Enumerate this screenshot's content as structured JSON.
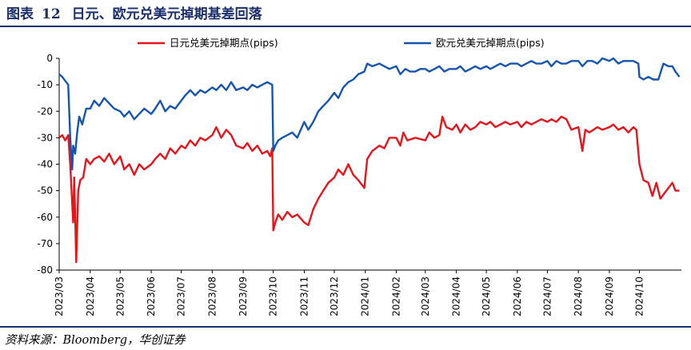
{
  "header": {
    "figure_label": "图表",
    "figure_number": "12",
    "title": "日元、欧元兑美元掉期基差回落"
  },
  "footer": {
    "source": "资料来源：Bloomberg，华创证券"
  },
  "colors": {
    "jpy": "#e8141c",
    "eur": "#1555b0",
    "accent": "#1a2f6b"
  },
  "chart_data": {
    "type": "line",
    "ylim": [
      -80,
      0
    ],
    "yticks": [
      0,
      -10,
      -20,
      -30,
      -40,
      -50,
      -60,
      -70,
      -80
    ],
    "xlim": [
      "2023-03-01",
      "2024-11-12"
    ],
    "xticks": [
      "2023/03",
      "2023/04",
      "2023/05",
      "2023/06",
      "2023/07",
      "2023/08",
      "2023/09",
      "2023/10",
      "2023/11",
      "2023/12",
      "2024/01",
      "2024/02",
      "2024/03",
      "2024/04",
      "2024/05",
      "2024/06",
      "2024/07",
      "2024/08",
      "2024/09",
      "2024/10"
    ],
    "legend_position": "top",
    "grid": false,
    "series": [
      {
        "name": "日元兑美元掉期点(pips)",
        "color": "#e8141c",
        "points": [
          [
            "2023-03-01",
            -30
          ],
          [
            "2023-03-04",
            -29
          ],
          [
            "2023-03-07",
            -31
          ],
          [
            "2023-03-10",
            -29
          ],
          [
            "2023-03-12",
            -40
          ],
          [
            "2023-03-14",
            -55
          ],
          [
            "2023-03-15",
            -62
          ],
          [
            "2023-03-16",
            -45
          ],
          [
            "2023-03-17",
            -60
          ],
          [
            "2023-03-18",
            -77
          ],
          [
            "2023-03-20",
            -50
          ],
          [
            "2023-03-22",
            -46
          ],
          [
            "2023-03-25",
            -45
          ],
          [
            "2023-03-28",
            -38
          ],
          [
            "2023-04-01",
            -40
          ],
          [
            "2023-04-05",
            -38
          ],
          [
            "2023-04-10",
            -37
          ],
          [
            "2023-04-15",
            -39
          ],
          [
            "2023-04-20",
            -36
          ],
          [
            "2023-04-25",
            -40
          ],
          [
            "2023-05-01",
            -37
          ],
          [
            "2023-05-05",
            -42
          ],
          [
            "2023-05-10",
            -40
          ],
          [
            "2023-05-15",
            -44
          ],
          [
            "2023-05-20",
            -40
          ],
          [
            "2023-05-25",
            -42
          ],
          [
            "2023-06-01",
            -40
          ],
          [
            "2023-06-05",
            -38
          ],
          [
            "2023-06-10",
            -36
          ],
          [
            "2023-06-15",
            -38
          ],
          [
            "2023-06-20",
            -34
          ],
          [
            "2023-06-25",
            -36
          ],
          [
            "2023-07-01",
            -33
          ],
          [
            "2023-07-05",
            -34
          ],
          [
            "2023-07-10",
            -31
          ],
          [
            "2023-07-15",
            -33
          ],
          [
            "2023-07-20",
            -30
          ],
          [
            "2023-07-25",
            -31
          ],
          [
            "2023-08-01",
            -29
          ],
          [
            "2023-08-05",
            -26
          ],
          [
            "2023-08-10",
            -30
          ],
          [
            "2023-08-15",
            -27
          ],
          [
            "2023-08-20",
            -29
          ],
          [
            "2023-08-25",
            -33
          ],
          [
            "2023-09-01",
            -34
          ],
          [
            "2023-09-05",
            -32
          ],
          [
            "2023-09-10",
            -35
          ],
          [
            "2023-09-15",
            -33
          ],
          [
            "2023-09-20",
            -36
          ],
          [
            "2023-09-25",
            -35
          ],
          [
            "2023-09-28",
            -37
          ],
          [
            "2023-09-30",
            -34
          ],
          [
            "2023-10-01",
            -65
          ],
          [
            "2023-10-03",
            -62
          ],
          [
            "2023-10-06",
            -59
          ],
          [
            "2023-10-10",
            -61
          ],
          [
            "2023-10-15",
            -58
          ],
          [
            "2023-10-20",
            -60
          ],
          [
            "2023-10-25",
            -59
          ],
          [
            "2023-11-01",
            -62
          ],
          [
            "2023-11-05",
            -63
          ],
          [
            "2023-11-10",
            -57
          ],
          [
            "2023-11-15",
            -53
          ],
          [
            "2023-11-20",
            -50
          ],
          [
            "2023-11-25",
            -47
          ],
          [
            "2023-12-01",
            -45
          ],
          [
            "2023-12-05",
            -42
          ],
          [
            "2023-12-10",
            -44
          ],
          [
            "2023-12-15",
            -40
          ],
          [
            "2023-12-20",
            -44
          ],
          [
            "2023-12-25",
            -46
          ],
          [
            "2023-12-31",
            -49
          ],
          [
            "2024-01-03",
            -38
          ],
          [
            "2024-01-08",
            -35
          ],
          [
            "2024-01-15",
            -33
          ],
          [
            "2024-01-20",
            -34
          ],
          [
            "2024-01-25",
            -30
          ],
          [
            "2024-02-01",
            -30
          ],
          [
            "2024-02-05",
            -33
          ],
          [
            "2024-02-08",
            -28
          ],
          [
            "2024-02-12",
            -31
          ],
          [
            "2024-02-20",
            -30
          ],
          [
            "2024-03-01",
            -31
          ],
          [
            "2024-03-05",
            -28
          ],
          [
            "2024-03-10",
            -30
          ],
          [
            "2024-03-15",
            -29
          ],
          [
            "2024-03-18",
            -22
          ],
          [
            "2024-03-22",
            -26
          ],
          [
            "2024-03-28",
            -27
          ],
          [
            "2024-04-01",
            -25
          ],
          [
            "2024-04-05",
            -28
          ],
          [
            "2024-04-10",
            -25
          ],
          [
            "2024-04-15",
            -27
          ],
          [
            "2024-04-20",
            -26
          ],
          [
            "2024-04-25",
            -24
          ],
          [
            "2024-05-01",
            -25
          ],
          [
            "2024-05-05",
            -24
          ],
          [
            "2024-05-10",
            -26
          ],
          [
            "2024-05-15",
            -25
          ],
          [
            "2024-05-20",
            -24
          ],
          [
            "2024-05-25",
            -25
          ],
          [
            "2024-06-01",
            -24
          ],
          [
            "2024-06-05",
            -26
          ],
          [
            "2024-06-10",
            -24
          ],
          [
            "2024-06-15",
            -25
          ],
          [
            "2024-06-20",
            -24
          ],
          [
            "2024-06-25",
            -23
          ],
          [
            "2024-07-01",
            -24
          ],
          [
            "2024-07-05",
            -23
          ],
          [
            "2024-07-10",
            -24
          ],
          [
            "2024-07-15",
            -22
          ],
          [
            "2024-07-20",
            -23
          ],
          [
            "2024-07-25",
            -27
          ],
          [
            "2024-08-01",
            -26
          ],
          [
            "2024-08-05",
            -35
          ],
          [
            "2024-08-08",
            -27
          ],
          [
            "2024-08-12",
            -28
          ],
          [
            "2024-08-20",
            -26
          ],
          [
            "2024-08-25",
            -27
          ],
          [
            "2024-09-01",
            -26
          ],
          [
            "2024-09-05",
            -25
          ],
          [
            "2024-09-10",
            -27
          ],
          [
            "2024-09-15",
            -26
          ],
          [
            "2024-09-20",
            -28
          ],
          [
            "2024-09-25",
            -26
          ],
          [
            "2024-09-28",
            -27
          ],
          [
            "2024-10-01",
            -40
          ],
          [
            "2024-10-05",
            -46
          ],
          [
            "2024-10-10",
            -47
          ],
          [
            "2024-10-14",
            -52
          ],
          [
            "2024-10-18",
            -47
          ],
          [
            "2024-10-22",
            -53
          ],
          [
            "2024-10-26",
            -51
          ],
          [
            "2024-10-30",
            -49
          ],
          [
            "2024-11-03",
            -47
          ],
          [
            "2024-11-06",
            -50
          ],
          [
            "2024-11-10",
            -50
          ]
        ]
      },
      {
        "name": "欧元兑美元掉期点(pips)",
        "color": "#1555b0",
        "points": [
          [
            "2023-03-01",
            -6
          ],
          [
            "2023-03-04",
            -7
          ],
          [
            "2023-03-08",
            -9
          ],
          [
            "2023-03-10",
            -10
          ],
          [
            "2023-03-12",
            -30
          ],
          [
            "2023-03-14",
            -42
          ],
          [
            "2023-03-15",
            -33
          ],
          [
            "2023-03-17",
            -36
          ],
          [
            "2023-03-19",
            -28
          ],
          [
            "2023-03-21",
            -22
          ],
          [
            "2023-03-24",
            -25
          ],
          [
            "2023-03-28",
            -19
          ],
          [
            "2023-04-01",
            -19
          ],
          [
            "2023-04-05",
            -16
          ],
          [
            "2023-04-10",
            -18
          ],
          [
            "2023-04-15",
            -15
          ],
          [
            "2023-04-20",
            -17
          ],
          [
            "2023-04-25",
            -19
          ],
          [
            "2023-05-01",
            -20
          ],
          [
            "2023-05-05",
            -22
          ],
          [
            "2023-05-10",
            -20
          ],
          [
            "2023-05-15",
            -23
          ],
          [
            "2023-05-20",
            -21
          ],
          [
            "2023-05-25",
            -19
          ],
          [
            "2023-06-01",
            -21
          ],
          [
            "2023-06-05",
            -19
          ],
          [
            "2023-06-10",
            -16
          ],
          [
            "2023-06-15",
            -20
          ],
          [
            "2023-06-20",
            -18
          ],
          [
            "2023-06-25",
            -19
          ],
          [
            "2023-07-01",
            -16
          ],
          [
            "2023-07-05",
            -14
          ],
          [
            "2023-07-10",
            -12
          ],
          [
            "2023-07-15",
            -14
          ],
          [
            "2023-07-20",
            -12
          ],
          [
            "2023-07-25",
            -13
          ],
          [
            "2023-08-01",
            -11
          ],
          [
            "2023-08-05",
            -12
          ],
          [
            "2023-08-10",
            -10
          ],
          [
            "2023-08-15",
            -12
          ],
          [
            "2023-08-20",
            -9
          ],
          [
            "2023-08-25",
            -12
          ],
          [
            "2023-09-01",
            -11
          ],
          [
            "2023-09-05",
            -12
          ],
          [
            "2023-09-10",
            -10
          ],
          [
            "2023-09-15",
            -11
          ],
          [
            "2023-09-20",
            -10
          ],
          [
            "2023-09-25",
            -9
          ],
          [
            "2023-09-30",
            -10
          ],
          [
            "2023-10-01",
            -35
          ],
          [
            "2023-10-03",
            -33
          ],
          [
            "2023-10-06",
            -31
          ],
          [
            "2023-10-10",
            -30
          ],
          [
            "2023-10-15",
            -29
          ],
          [
            "2023-10-20",
            -28
          ],
          [
            "2023-10-25",
            -30
          ],
          [
            "2023-11-01",
            -24
          ],
          [
            "2023-11-05",
            -27
          ],
          [
            "2023-11-10",
            -24
          ],
          [
            "2023-11-15",
            -20
          ],
          [
            "2023-11-20",
            -18
          ],
          [
            "2023-11-25",
            -16
          ],
          [
            "2023-12-01",
            -13
          ],
          [
            "2023-12-05",
            -15
          ],
          [
            "2023-12-10",
            -11
          ],
          [
            "2023-12-15",
            -9
          ],
          [
            "2023-12-20",
            -8
          ],
          [
            "2023-12-25",
            -6
          ],
          [
            "2023-12-31",
            -5
          ],
          [
            "2024-01-03",
            -2
          ],
          [
            "2024-01-08",
            -3
          ],
          [
            "2024-01-15",
            -2
          ],
          [
            "2024-01-20",
            -3
          ],
          [
            "2024-01-25",
            -4
          ],
          [
            "2024-02-01",
            -3
          ],
          [
            "2024-02-05",
            -6
          ],
          [
            "2024-02-10",
            -4
          ],
          [
            "2024-02-15",
            -5
          ],
          [
            "2024-02-20",
            -5
          ],
          [
            "2024-02-25",
            -4
          ],
          [
            "2024-03-01",
            -4
          ],
          [
            "2024-03-05",
            -5
          ],
          [
            "2024-03-10",
            -4
          ],
          [
            "2024-03-15",
            -3
          ],
          [
            "2024-03-20",
            -5
          ],
          [
            "2024-03-25",
            -4
          ],
          [
            "2024-04-01",
            -4
          ],
          [
            "2024-04-05",
            -3
          ],
          [
            "2024-04-10",
            -5
          ],
          [
            "2024-04-15",
            -4
          ],
          [
            "2024-04-20",
            -3
          ],
          [
            "2024-04-25",
            -4
          ],
          [
            "2024-05-01",
            -3
          ],
          [
            "2024-05-05",
            -4
          ],
          [
            "2024-05-10",
            -3
          ],
          [
            "2024-05-15",
            -2
          ],
          [
            "2024-05-20",
            -3
          ],
          [
            "2024-05-25",
            -2
          ],
          [
            "2024-06-01",
            -2
          ],
          [
            "2024-06-05",
            -3
          ],
          [
            "2024-06-10",
            -2
          ],
          [
            "2024-06-15",
            -1
          ],
          [
            "2024-06-20",
            -2
          ],
          [
            "2024-06-25",
            -2
          ],
          [
            "2024-07-01",
            -1
          ],
          [
            "2024-07-05",
            -3
          ],
          [
            "2024-07-10",
            -1
          ],
          [
            "2024-07-15",
            -2
          ],
          [
            "2024-07-20",
            -2
          ],
          [
            "2024-07-25",
            -1
          ],
          [
            "2024-08-01",
            -1
          ],
          [
            "2024-08-05",
            -3
          ],
          [
            "2024-08-10",
            -1
          ],
          [
            "2024-08-15",
            -1
          ],
          [
            "2024-08-20",
            -2
          ],
          [
            "2024-08-25",
            0
          ],
          [
            "2024-09-01",
            -1
          ],
          [
            "2024-09-05",
            0
          ],
          [
            "2024-09-10",
            -2
          ],
          [
            "2024-09-15",
            -1
          ],
          [
            "2024-09-20",
            -1
          ],
          [
            "2024-09-25",
            -1
          ],
          [
            "2024-09-30",
            -2
          ],
          [
            "2024-10-01",
            -7
          ],
          [
            "2024-10-05",
            -8
          ],
          [
            "2024-10-10",
            -7
          ],
          [
            "2024-10-15",
            -8
          ],
          [
            "2024-10-20",
            -8
          ],
          [
            "2024-10-25",
            -2
          ],
          [
            "2024-10-30",
            -3
          ],
          [
            "2024-11-03",
            -3
          ],
          [
            "2024-11-06",
            -5
          ],
          [
            "2024-11-10",
            -7
          ]
        ]
      }
    ]
  }
}
